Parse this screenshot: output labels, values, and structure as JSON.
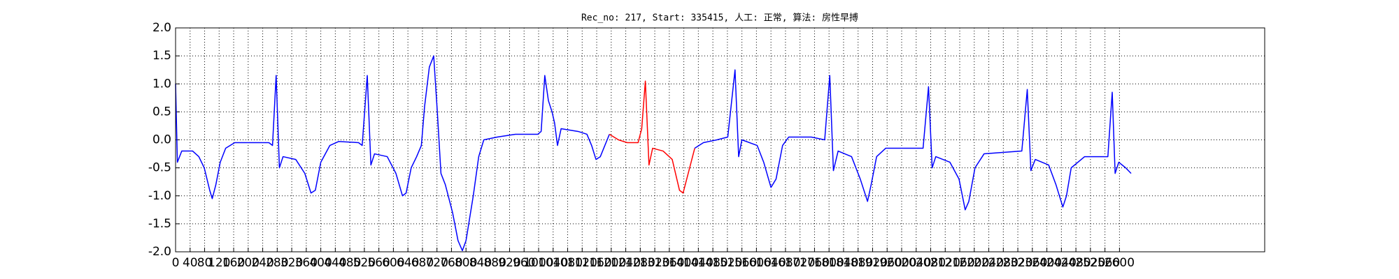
{
  "chart_data": {
    "type": "line",
    "title": "Rec_no: 217, Start: 335415, 人工: 正常, 算法: 房性早搏",
    "xlim": [
      0,
      3000
    ],
    "ylim": [
      -2,
      2
    ],
    "xticks": [
      0,
      40,
      80,
      120,
      160,
      200,
      240,
      280,
      320,
      360,
      400,
      440,
      480,
      520,
      560,
      600,
      640,
      680,
      720,
      760,
      800,
      840,
      880,
      920,
      960,
      1000,
      1040,
      1080,
      1120,
      1160,
      1200,
      1240,
      1280,
      1320,
      1360,
      1400,
      1440,
      1480,
      1520,
      1560,
      1600,
      1640,
      1680,
      1720,
      1760,
      1800,
      1840,
      1880,
      1920,
      1960,
      2000,
      2040,
      2080,
      2120,
      2160,
      2200,
      2240,
      2280,
      2320,
      2360,
      2400,
      2440,
      2480,
      2520,
      2560,
      2600
    ],
    "yticks": [
      {
        "value": -2,
        "label": "-2.0"
      },
      -1.5,
      {
        "value": -1,
        "label": "-1.0"
      },
      -0.5,
      {
        "value": 0,
        "label": "0.0"
      },
      0.5,
      {
        "value": 1,
        "label": "1.0"
      },
      1.5,
      {
        "value": 2,
        "label": "2.0"
      }
    ],
    "grid": true,
    "series": [
      {
        "color": "#0000ff",
        "x": [
          0,
          5,
          17,
          47,
          64,
          79,
          94,
          101,
          111,
          123,
          138,
          163,
          257,
          267,
          277,
          286,
          296,
          331,
          356,
          373,
          385,
          400,
          425,
          449,
          504,
          514,
          528,
          538,
          548,
          583,
          607,
          625,
          635,
          649,
          664,
          677,
          686,
          699,
          711,
          721,
          731,
          743,
          763,
          778,
          790,
          800,
          820,
          835,
          849,
          886,
          936,
          998,
          1007,
          1017,
          1027,
          1037,
          1044,
          1052,
          1062,
          1109,
          1133,
          1146,
          1158,
          1170,
          1195
        ],
        "values": [
          1.0,
          -0.4,
          -0.2,
          -0.2,
          -0.3,
          -0.5,
          -0.9,
          -1.05,
          -0.8,
          -0.4,
          -0.15,
          -0.05,
          -0.05,
          -0.1,
          1.15,
          -0.5,
          -0.3,
          -0.35,
          -0.6,
          -0.95,
          -0.9,
          -0.4,
          -0.1,
          -0.03,
          -0.05,
          -0.1,
          1.15,
          -0.45,
          -0.25,
          -0.3,
          -0.6,
          -1.0,
          -0.95,
          -0.5,
          -0.3,
          -0.1,
          0.6,
          1.3,
          1.5,
          0.5,
          -0.6,
          -0.8,
          -1.3,
          -1.8,
          -1.98,
          -1.8,
          -1.0,
          -0.3,
          0,
          0.05,
          0.1,
          0.1,
          0.15,
          1.15,
          0.7,
          0.5,
          0.3,
          -0.1,
          0.2,
          0.15,
          0.1,
          -0.1,
          -0.35,
          -0.3,
          0.1
        ]
      },
      {
        "color": "#ff0000",
        "x": [
          1195,
          1220,
          1244,
          1274,
          1284,
          1294,
          1304,
          1314,
          1343,
          1368,
          1388,
          1398,
          1412,
          1430
        ],
        "values": [
          0.1,
          0.0,
          -0.05,
          -0.05,
          0.2,
          1.05,
          -0.45,
          -0.15,
          -0.2,
          -0.35,
          -0.9,
          -0.95,
          -0.6,
          -0.15
        ]
      },
      {
        "color": "#0000ff",
        "x": [
          1430,
          1454,
          1491,
          1521,
          1541,
          1551,
          1560,
          1602,
          1620,
          1640,
          1654,
          1672,
          1689,
          1751,
          1788,
          1802,
          1812,
          1825,
          1862,
          1886,
          1906,
          1916,
          1931,
          1956,
          2059,
          2074,
          2084,
          2094,
          2133,
          2158,
          2175,
          2185,
          2202,
          2227,
          2331,
          2346,
          2356,
          2368,
          2405,
          2425,
          2444,
          2454,
          2467,
          2504,
          2568,
          2580,
          2588,
          2598,
          2617,
          2632
        ],
        "values": [
          -0.15,
          -0.05,
          0,
          0.05,
          1.25,
          -0.3,
          0,
          -0.1,
          -0.4,
          -0.85,
          -0.7,
          -0.1,
          0.05,
          0.05,
          0,
          1.15,
          -0.55,
          -0.2,
          -0.3,
          -0.7,
          -1.1,
          -0.8,
          -0.3,
          -0.15,
          -0.15,
          0.95,
          -0.5,
          -0.3,
          -0.4,
          -0.7,
          -1.25,
          -1.1,
          -0.5,
          -0.25,
          -0.2,
          0.9,
          -0.55,
          -0.35,
          -0.45,
          -0.8,
          -1.2,
          -1.0,
          -0.5,
          -0.3,
          -0.3,
          0.85,
          -0.6,
          -0.4,
          -0.5,
          -0.6
        ]
      }
    ]
  }
}
